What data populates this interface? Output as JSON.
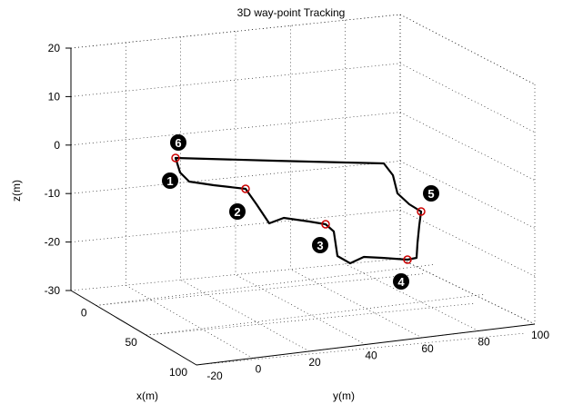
{
  "chart_data": {
    "type": "line",
    "title": "3D way-point Tracking",
    "xlabel": "x(m)",
    "ylabel": "y(m)",
    "zlabel": "z(m)",
    "xlim": [
      -20,
      100
    ],
    "ylim": [
      -20,
      100
    ],
    "zlim": [
      -30,
      20
    ],
    "x_ticks": [
      "0",
      "50",
      "100"
    ],
    "y_ticks": [
      "-20",
      "0",
      "20",
      "40",
      "60",
      "80",
      "100"
    ],
    "z_ticks": [
      "20",
      "10",
      "0",
      "-10",
      "-20",
      "-30"
    ],
    "grid": true,
    "series": [
      {
        "color": "#000000",
        "trajectory_screen_path": [
          [
            193,
            174
          ],
          [
            198,
            190
          ],
          [
            208,
            200
          ],
          [
            235,
            204
          ],
          [
            270,
            208
          ],
          [
            282,
            225
          ],
          [
            296,
            246
          ],
          [
            312,
            240
          ],
          [
            340,
            244
          ],
          [
            358,
            247
          ],
          [
            367,
            255
          ],
          [
            371,
            282
          ],
          [
            385,
            290
          ],
          [
            400,
            283
          ],
          [
            420,
            284
          ],
          [
            448,
            286
          ],
          [
            458,
            284
          ],
          [
            459,
            268
          ],
          [
            461,
            248
          ],
          [
            463,
            233
          ],
          [
            450,
            225
          ],
          [
            437,
            213
          ],
          [
            432,
            193
          ],
          [
            422,
            180
          ],
          [
            380,
            179
          ],
          [
            300,
            177
          ],
          [
            193,
            174
          ]
        ]
      }
    ],
    "waypoints": [
      {
        "label": "1",
        "marker_color": "#cc0000"
      },
      {
        "label": "2",
        "marker_color": "#cc0000"
      },
      {
        "label": "3",
        "marker_color": "#cc0000"
      },
      {
        "label": "4",
        "marker_color": "#cc0000"
      },
      {
        "label": "5",
        "marker_color": "#cc0000"
      },
      {
        "label": "6",
        "marker_color": "#cc0000"
      }
    ]
  }
}
